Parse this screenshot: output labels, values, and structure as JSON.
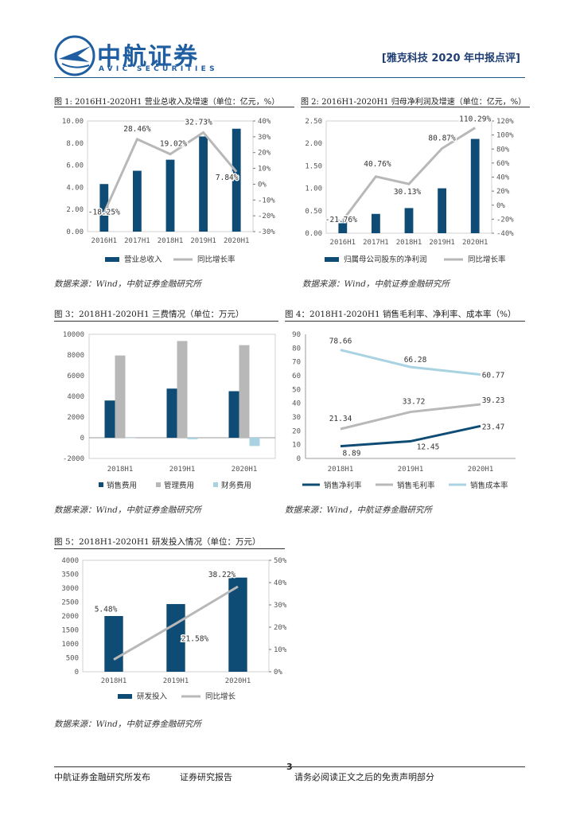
{
  "header": {
    "logo_cn": "中航证券",
    "logo_en": "AVIC SECURITIES",
    "report_tag": "[雅克科技 2020 年中报点评]"
  },
  "colors": {
    "navy": "#0f4c75",
    "gray": "#b8b8b8",
    "lightblue": "#a9d3e2",
    "brand": "#1f5ea1"
  },
  "figures": {
    "fig1": {
      "title": "图 1: 2016H1-2020H1 营业总收入及增速（单位：亿元，%）",
      "source": "数据来源：Wind，中航证券金融研究所"
    },
    "fig2": {
      "title": "图 2: 2016H1-2020H1 归母净利润及增速（单位：亿元，%）",
      "source": "数据来源：Wind，中航证券金融研究所"
    },
    "fig3": {
      "title": "图 3：2018H1-2020H1 三费情况（单位：万元）",
      "source": "数据来源：Wind，中航证券金融研究所"
    },
    "fig4": {
      "title": "图 4：2018H1-2020H1 销售毛利率、净利率、成本率（%）",
      "source": "数据来源：Wind，中航证券金融研究所"
    },
    "fig5": {
      "title": "图 5：2018H1-2020H1 研发投入情况（单位：万元）",
      "source": "数据来源：Wind，中航证券金融研究所"
    }
  },
  "chart_data": [
    {
      "id": "fig1",
      "type": "bar+line",
      "categories": [
        "2016H1",
        "2017H1",
        "2018H1",
        "2019H1",
        "2020H1"
      ],
      "series": [
        {
          "name": "营业总收入",
          "kind": "bar",
          "axis": "left",
          "values": [
            4.3,
            5.5,
            6.5,
            8.6,
            9.3
          ]
        },
        {
          "name": "同比增长率",
          "kind": "line",
          "axis": "right",
          "values": [
            -18.25,
            28.46,
            19.02,
            32.73,
            7.84
          ]
        }
      ],
      "data_labels": [
        "-18.25%",
        "28.46%",
        "19.02%",
        "32.73%",
        "7.84%"
      ],
      "y_left": {
        "min": 0,
        "max": 10,
        "ticks": [
          "0.00",
          "2.00",
          "4.00",
          "6.00",
          "8.00",
          "10.00"
        ]
      },
      "y_right": {
        "min": -30,
        "max": 40,
        "ticks": [
          "-30%",
          "-20%",
          "-10%",
          "0%",
          "10%",
          "20%",
          "30%",
          "40%"
        ]
      }
    },
    {
      "id": "fig2",
      "type": "bar+line",
      "categories": [
        "2016H1",
        "2017H1",
        "2018H1",
        "2019H1",
        "2020H1"
      ],
      "series": [
        {
          "name": "归属母公司股东的净利润",
          "kind": "bar",
          "axis": "left",
          "values": [
            0.3,
            0.43,
            0.56,
            1.0,
            2.1
          ]
        },
        {
          "name": "同比增长率",
          "kind": "line",
          "axis": "right",
          "values": [
            -21.76,
            40.76,
            30.13,
            80.87,
            110.29
          ]
        }
      ],
      "data_labels": [
        "-21.76%",
        "40.76%",
        "30.13%",
        "80.87%",
        "110.29%"
      ],
      "y_left": {
        "min": 0,
        "max": 2.5,
        "ticks": [
          "0.00",
          "0.50",
          "1.00",
          "1.50",
          "2.00",
          "2.50"
        ]
      },
      "y_right": {
        "min": -40,
        "max": 120,
        "ticks": [
          "-40%",
          "-20%",
          "0%",
          "20%",
          "40%",
          "60%",
          "80%",
          "100%",
          "120%"
        ]
      }
    },
    {
      "id": "fig3",
      "type": "bar",
      "categories": [
        "2018H1",
        "2019H1",
        "2020H1"
      ],
      "series": [
        {
          "name": "销售费用",
          "values": [
            3600,
            4750,
            4500
          ]
        },
        {
          "name": "管理费用",
          "values": [
            7950,
            9350,
            8950
          ]
        },
        {
          "name": "财务费用",
          "values": [
            0,
            -150,
            -800
          ]
        }
      ],
      "y": {
        "min": -2000,
        "max": 10000,
        "ticks": [
          "-2000",
          "0",
          "2000",
          "4000",
          "6000",
          "8000",
          "10000"
        ]
      }
    },
    {
      "id": "fig4",
      "type": "line",
      "categories": [
        "2018H1",
        "2019H1",
        "2020H1"
      ],
      "series": [
        {
          "name": "销售净利率",
          "values": [
            8.89,
            12.45,
            23.47
          ],
          "labels": [
            "8.89",
            "12.45",
            "23.47"
          ]
        },
        {
          "name": "销售毛利率",
          "values": [
            21.34,
            33.72,
            39.23
          ],
          "labels": [
            "21.34",
            "33.72",
            "39.23"
          ]
        },
        {
          "name": "销售成本率",
          "values": [
            78.66,
            66.28,
            60.77
          ],
          "labels": [
            "78.66",
            "66.28",
            "60.77"
          ]
        }
      ],
      "y": {
        "min": 0,
        "max": 90,
        "ticks": [
          "0",
          "10",
          "20",
          "30",
          "40",
          "50",
          "60",
          "70",
          "80",
          "90"
        ]
      }
    },
    {
      "id": "fig5",
      "type": "bar+line",
      "categories": [
        "2018H1",
        "2019H1",
        "2020H1"
      ],
      "series": [
        {
          "name": "研发投入",
          "kind": "bar",
          "axis": "left",
          "values": [
            2000,
            2430,
            3380
          ]
        },
        {
          "name": "同比增长",
          "kind": "line",
          "axis": "right",
          "values": [
            5.48,
            21.58,
            38.22
          ]
        }
      ],
      "data_labels": [
        "5.48%",
        "21.58%",
        "38.22%"
      ],
      "y_left": {
        "min": 0,
        "max": 4000,
        "ticks": [
          "0",
          "500",
          "1000",
          "1500",
          "2000",
          "2500",
          "3000",
          "3500",
          "4000"
        ]
      },
      "y_right": {
        "min": 0,
        "max": 50,
        "ticks": [
          "0%",
          "10%",
          "20%",
          "30%",
          "40%",
          "50%"
        ]
      }
    }
  ],
  "footer": {
    "page_number": "3",
    "publisher": "中航证券金融研究所发布",
    "report_type": "证券研究报告",
    "disclaimer": "请务必阅读正文之后的免责声明部分"
  }
}
